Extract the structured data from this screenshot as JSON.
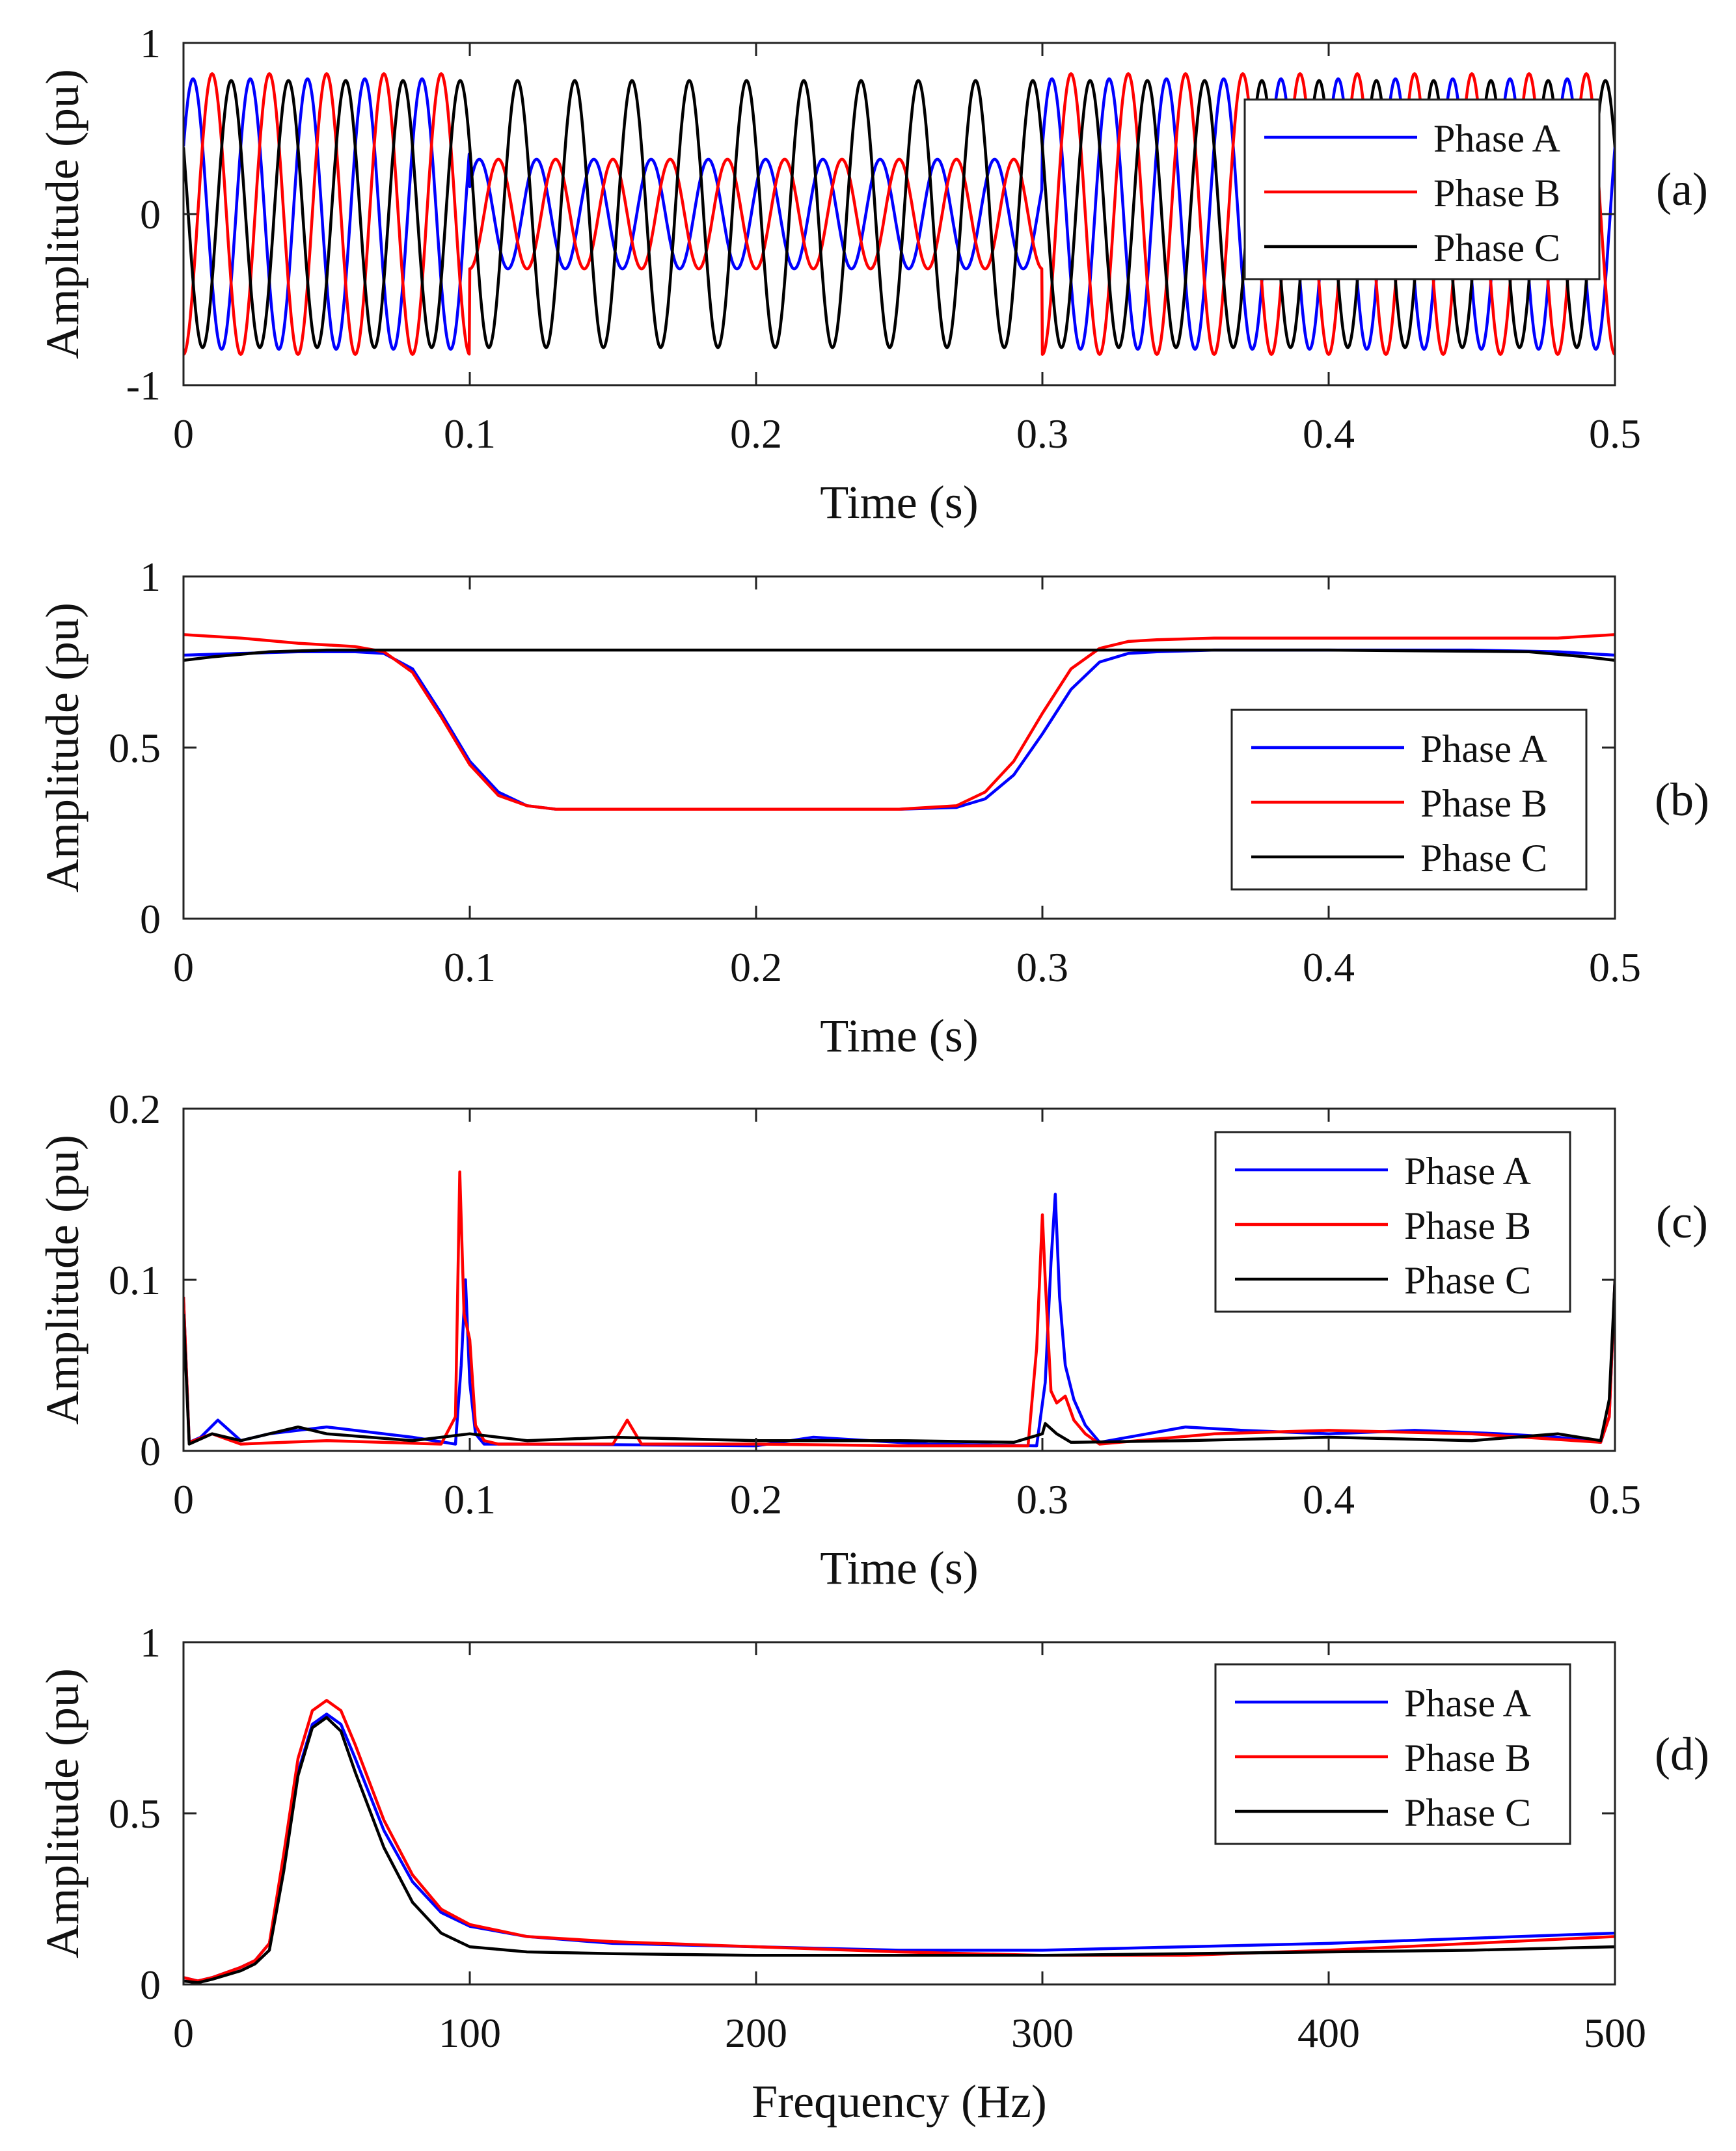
{
  "chart_data": [
    {
      "type": "line",
      "panel_label": "(a)",
      "xlabel": "Time (s)",
      "ylabel": "Amplitude (pu)",
      "xlim": [
        0,
        0.5
      ],
      "ylim": [
        -1,
        1
      ],
      "xticks": [
        0,
        0.1,
        0.2,
        0.3,
        0.4,
        0.5
      ],
      "xtick_labels": [
        "0",
        "0.1",
        "0.2",
        "0.3",
        "0.4",
        "0.5"
      ],
      "yticks": [
        -1,
        0,
        1
      ],
      "ytick_labels": [
        "-1",
        "0",
        "1"
      ],
      "legend_position": "top-right",
      "grid": false,
      "signal": {
        "form": "three-phase sinusoid",
        "frequency_hz": 50,
        "dip_start_s": 0.1,
        "dip_end_s": 0.3,
        "normal_peaks": {
          "Phase A": 0.79,
          "Phase B": 0.82,
          "Phase C": 0.78
        },
        "sag_peaks": {
          "Phase A": 0.32,
          "Phase B": 0.32,
          "Phase C": 0.78
        },
        "phase_deg": {
          "Phase A": 30,
          "Phase B": -90,
          "Phase C": 150
        }
      },
      "series": [
        {
          "name": "Phase A",
          "color": "#0000ff"
        },
        {
          "name": "Phase B",
          "color": "#ff0000"
        },
        {
          "name": "Phase C",
          "color": "#000000"
        }
      ]
    },
    {
      "type": "line",
      "panel_label": "(b)",
      "xlabel": "Time (s)",
      "ylabel": "Amplitude (pu)",
      "xlim": [
        0,
        0.5
      ],
      "ylim": [
        0,
        1
      ],
      "xticks": [
        0,
        0.1,
        0.2,
        0.3,
        0.4,
        0.5
      ],
      "xtick_labels": [
        "0",
        "0.1",
        "0.2",
        "0.3",
        "0.4",
        "0.5"
      ],
      "yticks": [
        0,
        0.5,
        1
      ],
      "ytick_labels": [
        "0",
        "0.5",
        "1"
      ],
      "legend_position": "center-right",
      "grid": false,
      "series": [
        {
          "name": "Phase A",
          "color": "#0000ff",
          "x": [
            0,
            0.02,
            0.04,
            0.06,
            0.07,
            0.08,
            0.09,
            0.1,
            0.11,
            0.12,
            0.13,
            0.15,
            0.2,
            0.25,
            0.27,
            0.28,
            0.29,
            0.3,
            0.31,
            0.32,
            0.33,
            0.34,
            0.36,
            0.4,
            0.45,
            0.48,
            0.5
          ],
          "values": [
            0.77,
            0.775,
            0.78,
            0.78,
            0.775,
            0.73,
            0.6,
            0.46,
            0.37,
            0.33,
            0.32,
            0.32,
            0.32,
            0.32,
            0.325,
            0.35,
            0.42,
            0.54,
            0.67,
            0.75,
            0.775,
            0.78,
            0.785,
            0.785,
            0.785,
            0.78,
            0.77
          ]
        },
        {
          "name": "Phase B",
          "color": "#ff0000",
          "x": [
            0,
            0.02,
            0.04,
            0.06,
            0.07,
            0.08,
            0.09,
            0.1,
            0.11,
            0.12,
            0.13,
            0.15,
            0.2,
            0.25,
            0.27,
            0.28,
            0.29,
            0.3,
            0.31,
            0.32,
            0.33,
            0.34,
            0.36,
            0.4,
            0.45,
            0.48,
            0.5
          ],
          "values": [
            0.83,
            0.82,
            0.805,
            0.795,
            0.78,
            0.72,
            0.59,
            0.45,
            0.36,
            0.33,
            0.32,
            0.32,
            0.32,
            0.32,
            0.33,
            0.37,
            0.46,
            0.6,
            0.73,
            0.79,
            0.81,
            0.815,
            0.82,
            0.82,
            0.82,
            0.82,
            0.83
          ]
        },
        {
          "name": "Phase C",
          "color": "#000000",
          "x": [
            0,
            0.01,
            0.03,
            0.05,
            0.1,
            0.2,
            0.3,
            0.4,
            0.47,
            0.49,
            0.5
          ],
          "values": [
            0.755,
            0.765,
            0.78,
            0.785,
            0.785,
            0.785,
            0.785,
            0.785,
            0.78,
            0.765,
            0.755
          ]
        }
      ]
    },
    {
      "type": "line",
      "panel_label": "(c)",
      "xlabel": "Time (s)",
      "ylabel": "Amplitude (pu)",
      "xlim": [
        0,
        0.5
      ],
      "ylim": [
        0,
        0.2
      ],
      "xticks": [
        0,
        0.1,
        0.2,
        0.3,
        0.4,
        0.5
      ],
      "xtick_labels": [
        "0",
        "0.1",
        "0.2",
        "0.3",
        "0.4",
        "0.5"
      ],
      "yticks": [
        0,
        0.1,
        0.2
      ],
      "ytick_labels": [
        "0",
        "0.1",
        "0.2"
      ],
      "legend_position": "top-right",
      "grid": false,
      "series": [
        {
          "name": "Phase A",
          "color": "#0000ff",
          "x": [
            0,
            0.002,
            0.006,
            0.012,
            0.02,
            0.03,
            0.05,
            0.08,
            0.095,
            0.097,
            0.0985,
            0.1,
            0.102,
            0.105,
            0.12,
            0.2,
            0.22,
            0.26,
            0.298,
            0.301,
            0.303,
            0.3045,
            0.306,
            0.308,
            0.311,
            0.315,
            0.32,
            0.35,
            0.37,
            0.4,
            0.43,
            0.46,
            0.48,
            0.495,
            0.498,
            0.5
          ],
          "values": [
            0.09,
            0.005,
            0.008,
            0.018,
            0.006,
            0.01,
            0.014,
            0.008,
            0.004,
            0.05,
            0.1,
            0.04,
            0.01,
            0.004,
            0.004,
            0.003,
            0.008,
            0.004,
            0.003,
            0.04,
            0.11,
            0.15,
            0.09,
            0.05,
            0.03,
            0.015,
            0.005,
            0.014,
            0.012,
            0.01,
            0.012,
            0.01,
            0.008,
            0.005,
            0.02,
            0.1
          ]
        },
        {
          "name": "Phase B",
          "color": "#ff0000",
          "x": [
            0,
            0.002,
            0.01,
            0.02,
            0.05,
            0.09,
            0.095,
            0.0965,
            0.098,
            0.1,
            0.102,
            0.105,
            0.11,
            0.15,
            0.155,
            0.16,
            0.2,
            0.25,
            0.295,
            0.298,
            0.3,
            0.301,
            0.303,
            0.305,
            0.308,
            0.311,
            0.315,
            0.32,
            0.36,
            0.4,
            0.45,
            0.495,
            0.498,
            0.5
          ],
          "values": [
            0.09,
            0.005,
            0.01,
            0.004,
            0.006,
            0.004,
            0.02,
            0.163,
            0.08,
            0.065,
            0.015,
            0.006,
            0.004,
            0.004,
            0.018,
            0.004,
            0.004,
            0.003,
            0.003,
            0.06,
            0.138,
            0.1,
            0.035,
            0.028,
            0.032,
            0.018,
            0.01,
            0.004,
            0.01,
            0.012,
            0.01,
            0.005,
            0.02,
            0.1
          ]
        },
        {
          "name": "Phase C",
          "color": "#000000",
          "x": [
            0,
            0.002,
            0.01,
            0.02,
            0.04,
            0.05,
            0.08,
            0.1,
            0.12,
            0.15,
            0.2,
            0.25,
            0.29,
            0.3,
            0.301,
            0.305,
            0.31,
            0.35,
            0.4,
            0.45,
            0.48,
            0.495,
            0.498,
            0.5
          ],
          "values": [
            0.08,
            0.004,
            0.01,
            0.006,
            0.014,
            0.01,
            0.006,
            0.01,
            0.006,
            0.008,
            0.006,
            0.006,
            0.005,
            0.01,
            0.016,
            0.01,
            0.005,
            0.006,
            0.008,
            0.006,
            0.01,
            0.006,
            0.03,
            0.1
          ]
        }
      ]
    },
    {
      "type": "line",
      "panel_label": "(d)",
      "xlabel": "Frequency (Hz)",
      "ylabel": "Amplitude (pu)",
      "xlim": [
        0,
        500
      ],
      "ylim": [
        0,
        1
      ],
      "xticks": [
        0,
        100,
        200,
        300,
        400,
        500
      ],
      "xtick_labels": [
        "0",
        "100",
        "200",
        "300",
        "400",
        "500"
      ],
      "yticks": [
        0,
        0.5,
        1
      ],
      "ytick_labels": [
        "0",
        "0.5",
        "1"
      ],
      "legend_position": "top-right",
      "grid": false,
      "series": [
        {
          "name": "Phase A",
          "color": "#0000ff",
          "x": [
            0,
            5,
            10,
            20,
            25,
            30,
            35,
            40,
            45,
            50,
            55,
            60,
            70,
            80,
            90,
            100,
            120,
            150,
            200,
            250,
            300,
            350,
            400,
            450,
            500
          ],
          "values": [
            0.02,
            0.01,
            0.02,
            0.05,
            0.07,
            0.12,
            0.35,
            0.62,
            0.76,
            0.79,
            0.76,
            0.66,
            0.45,
            0.3,
            0.21,
            0.17,
            0.14,
            0.12,
            0.11,
            0.1,
            0.1,
            0.11,
            0.12,
            0.135,
            0.15
          ]
        },
        {
          "name": "Phase B",
          "color": "#ff0000",
          "x": [
            0,
            5,
            10,
            20,
            25,
            30,
            35,
            40,
            45,
            50,
            55,
            60,
            70,
            80,
            90,
            100,
            120,
            150,
            200,
            250,
            300,
            350,
            400,
            450,
            500
          ],
          "values": [
            0.02,
            0.01,
            0.02,
            0.05,
            0.07,
            0.12,
            0.38,
            0.66,
            0.8,
            0.83,
            0.8,
            0.7,
            0.48,
            0.32,
            0.22,
            0.175,
            0.14,
            0.125,
            0.11,
            0.095,
            0.085,
            0.085,
            0.1,
            0.12,
            0.14
          ]
        },
        {
          "name": "Phase C",
          "color": "#000000",
          "x": [
            0,
            5,
            10,
            20,
            25,
            30,
            35,
            40,
            45,
            50,
            55,
            60,
            70,
            80,
            90,
            100,
            120,
            150,
            200,
            250,
            300,
            350,
            400,
            450,
            500
          ],
          "values": [
            0.01,
            0.005,
            0.015,
            0.04,
            0.06,
            0.1,
            0.33,
            0.61,
            0.75,
            0.78,
            0.74,
            0.62,
            0.4,
            0.24,
            0.15,
            0.11,
            0.095,
            0.09,
            0.085,
            0.085,
            0.085,
            0.09,
            0.095,
            0.1,
            0.11
          ]
        }
      ]
    }
  ]
}
